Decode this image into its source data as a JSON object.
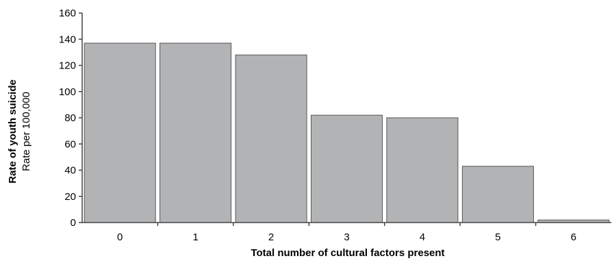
{
  "chart_data": {
    "type": "bar",
    "categories": [
      "0",
      "1",
      "2",
      "3",
      "4",
      "5",
      "6"
    ],
    "values": [
      137,
      137,
      128,
      82,
      80,
      43,
      2
    ],
    "title": "",
    "xlabel": "Total number of cultural factors present",
    "ylabel": "Rate of youth suicide",
    "ylabel_sub": "Rate per 100,000",
    "ylim": [
      0,
      160
    ],
    "yticks": [
      0,
      20,
      40,
      60,
      80,
      100,
      120,
      140,
      160
    ],
    "grid": false,
    "legend": "none",
    "colors": {
      "bar_fill": "#b2b3b5",
      "bar_stroke": "#555555",
      "axis": "#444444"
    }
  }
}
